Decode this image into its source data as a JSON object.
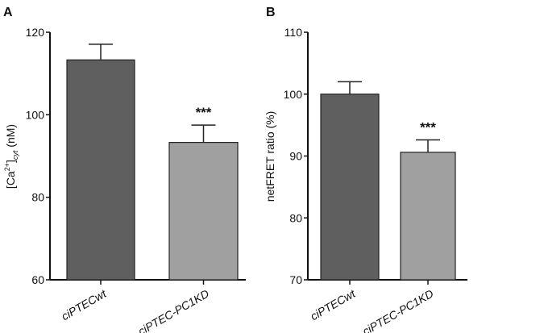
{
  "chart_data": [
    {
      "type": "bar",
      "panel": "A",
      "ylabel_main": "[Ca",
      "ylabel_sup": "2+",
      "ylabel_mid": "]",
      "ylabel_sub": "cyt",
      "ylabel_unit": " (nM)",
      "ylim": [
        60,
        120
      ],
      "yticks": [
        60,
        80,
        100,
        120
      ],
      "categories": [
        "ciPTECwt",
        "ciPTEC-PC1KD"
      ],
      "values": [
        113.3,
        93.3
      ],
      "errors": [
        3.8,
        4.2
      ],
      "annotations": [
        "",
        "***"
      ],
      "colors": [
        "#5f5f5f",
        "#a0a0a0"
      ]
    },
    {
      "type": "bar",
      "panel": "B",
      "ylabel": "netFRET ratio (%)",
      "ylim": [
        70,
        110
      ],
      "yticks": [
        70,
        80,
        90,
        100,
        110
      ],
      "categories": [
        "ciPTECwt",
        "ciPTEC-PC1KD"
      ],
      "values": [
        100,
        90.6
      ],
      "errors": [
        2.0,
        2.0
      ],
      "annotations": [
        "",
        "***"
      ],
      "colors": [
        "#5f5f5f",
        "#a0a0a0"
      ]
    }
  ]
}
